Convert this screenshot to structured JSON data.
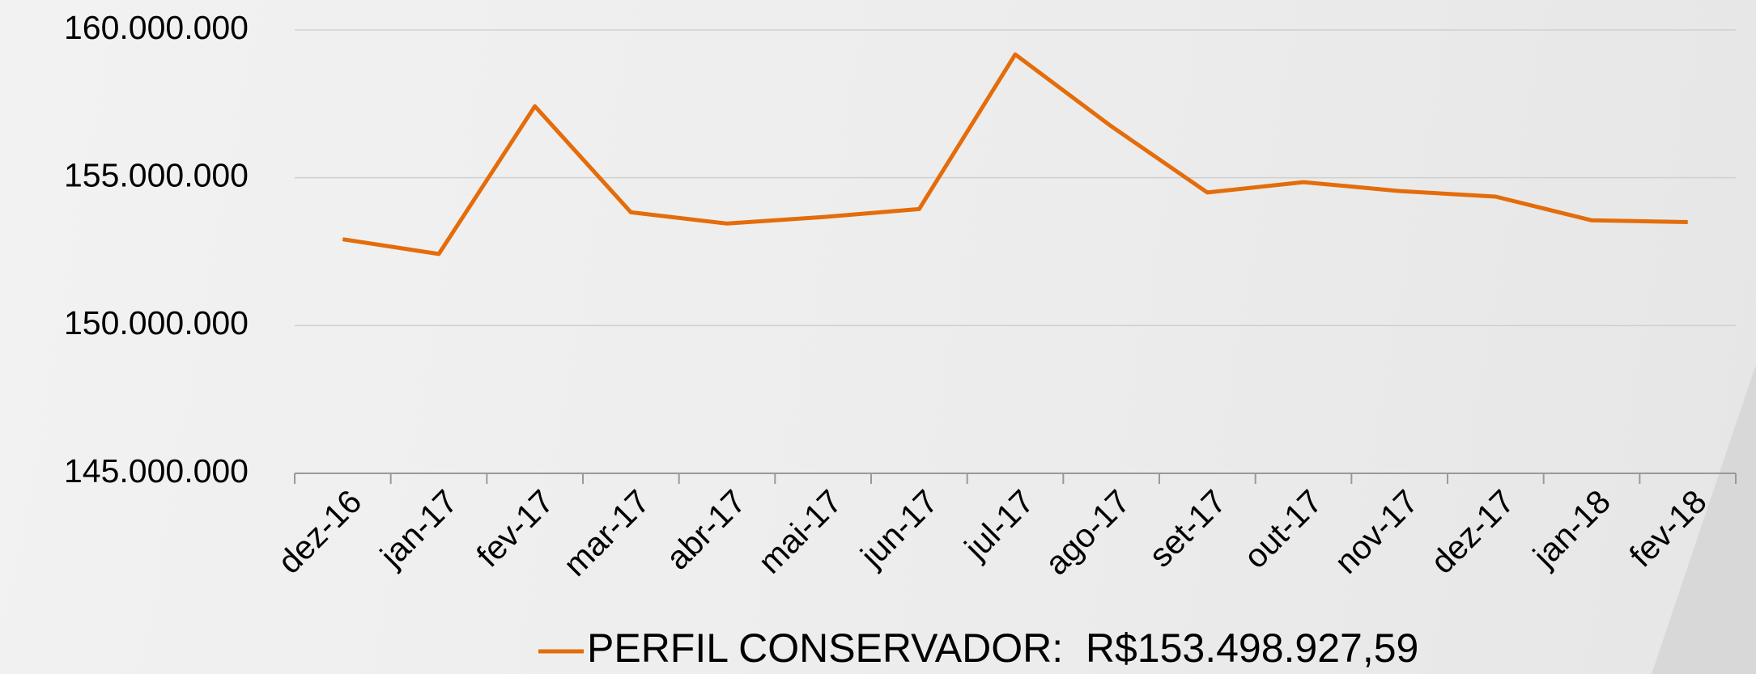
{
  "chart_data": {
    "type": "line",
    "categories": [
      "dez-16",
      "jan-17",
      "fev-17",
      "mar-17",
      "abr-17",
      "mai-17",
      "jun-17",
      "jul-17",
      "ago-17",
      "set-17",
      "out-17",
      "nov-17",
      "dez-17",
      "jan-18",
      "fev-18"
    ],
    "series": [
      {
        "name": "PERFIL CONSERVADOR:  R$153.498.927,59",
        "color": "#e46c0a",
        "values": [
          152920000,
          152420000,
          157420000,
          153830000,
          153450000,
          153670000,
          153940000,
          159170000,
          156740000,
          154500000,
          154850000,
          154550000,
          154360000,
          153560000,
          153498927.59
        ]
      }
    ],
    "ylim": [
      145000000,
      160000000
    ],
    "yticks": [
      {
        "value": 145000000,
        "label": "145.000.000"
      },
      {
        "value": 150000000,
        "label": "150.000.000"
      },
      {
        "value": 155000000,
        "label": "155.000.000"
      },
      {
        "value": 160000000,
        "label": "160.000.000"
      }
    ],
    "grid": true,
    "legend": "bottom"
  }
}
